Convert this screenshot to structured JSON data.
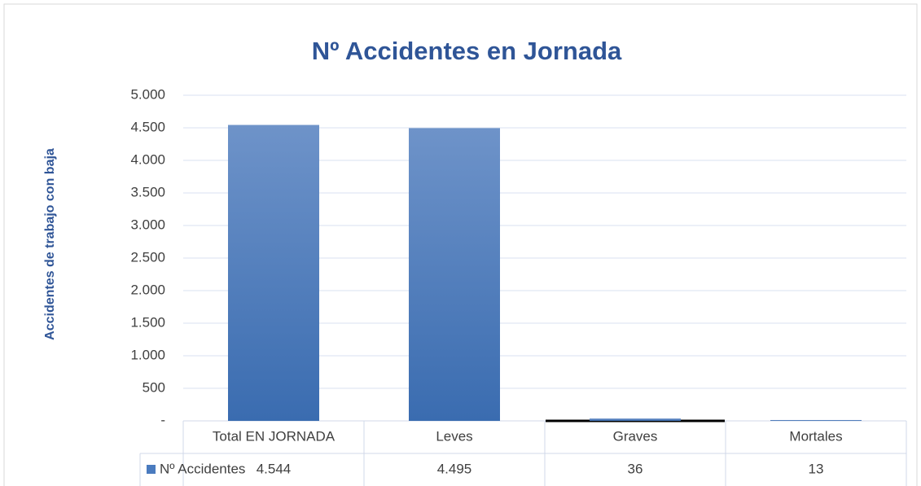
{
  "chart_data": {
    "type": "bar",
    "title": "Nº Accidentes en Jornada",
    "y_label": "Accidentes de trabajo con baja",
    "categories": [
      "Total EN JORNADA",
      "Leves",
      "Graves",
      "Mortales"
    ],
    "series": [
      {
        "name": "Nº Accidentes",
        "color": "#4a7bbf",
        "values": [
          4544,
          4495,
          36,
          13
        ],
        "value_labels": [
          "4.544",
          "4.495",
          "36",
          "13"
        ]
      }
    ],
    "ylim": [
      0,
      5000
    ],
    "yticks": [
      {
        "value": 0,
        "label": "-"
      },
      500,
      {
        "value": 1000,
        "label": "1.000"
      },
      {
        "value": 1500,
        "label": "1.500"
      },
      {
        "value": 2000,
        "label": "2.000"
      },
      {
        "value": 2500,
        "label": "2.500"
      },
      {
        "value": 3000,
        "label": "3.000"
      },
      {
        "value": 3500,
        "label": "3.500"
      },
      {
        "value": 4000,
        "label": "4.000"
      },
      {
        "value": 4500,
        "label": "4.500"
      },
      {
        "value": 5000,
        "label": "5.000"
      }
    ],
    "grid": true
  }
}
